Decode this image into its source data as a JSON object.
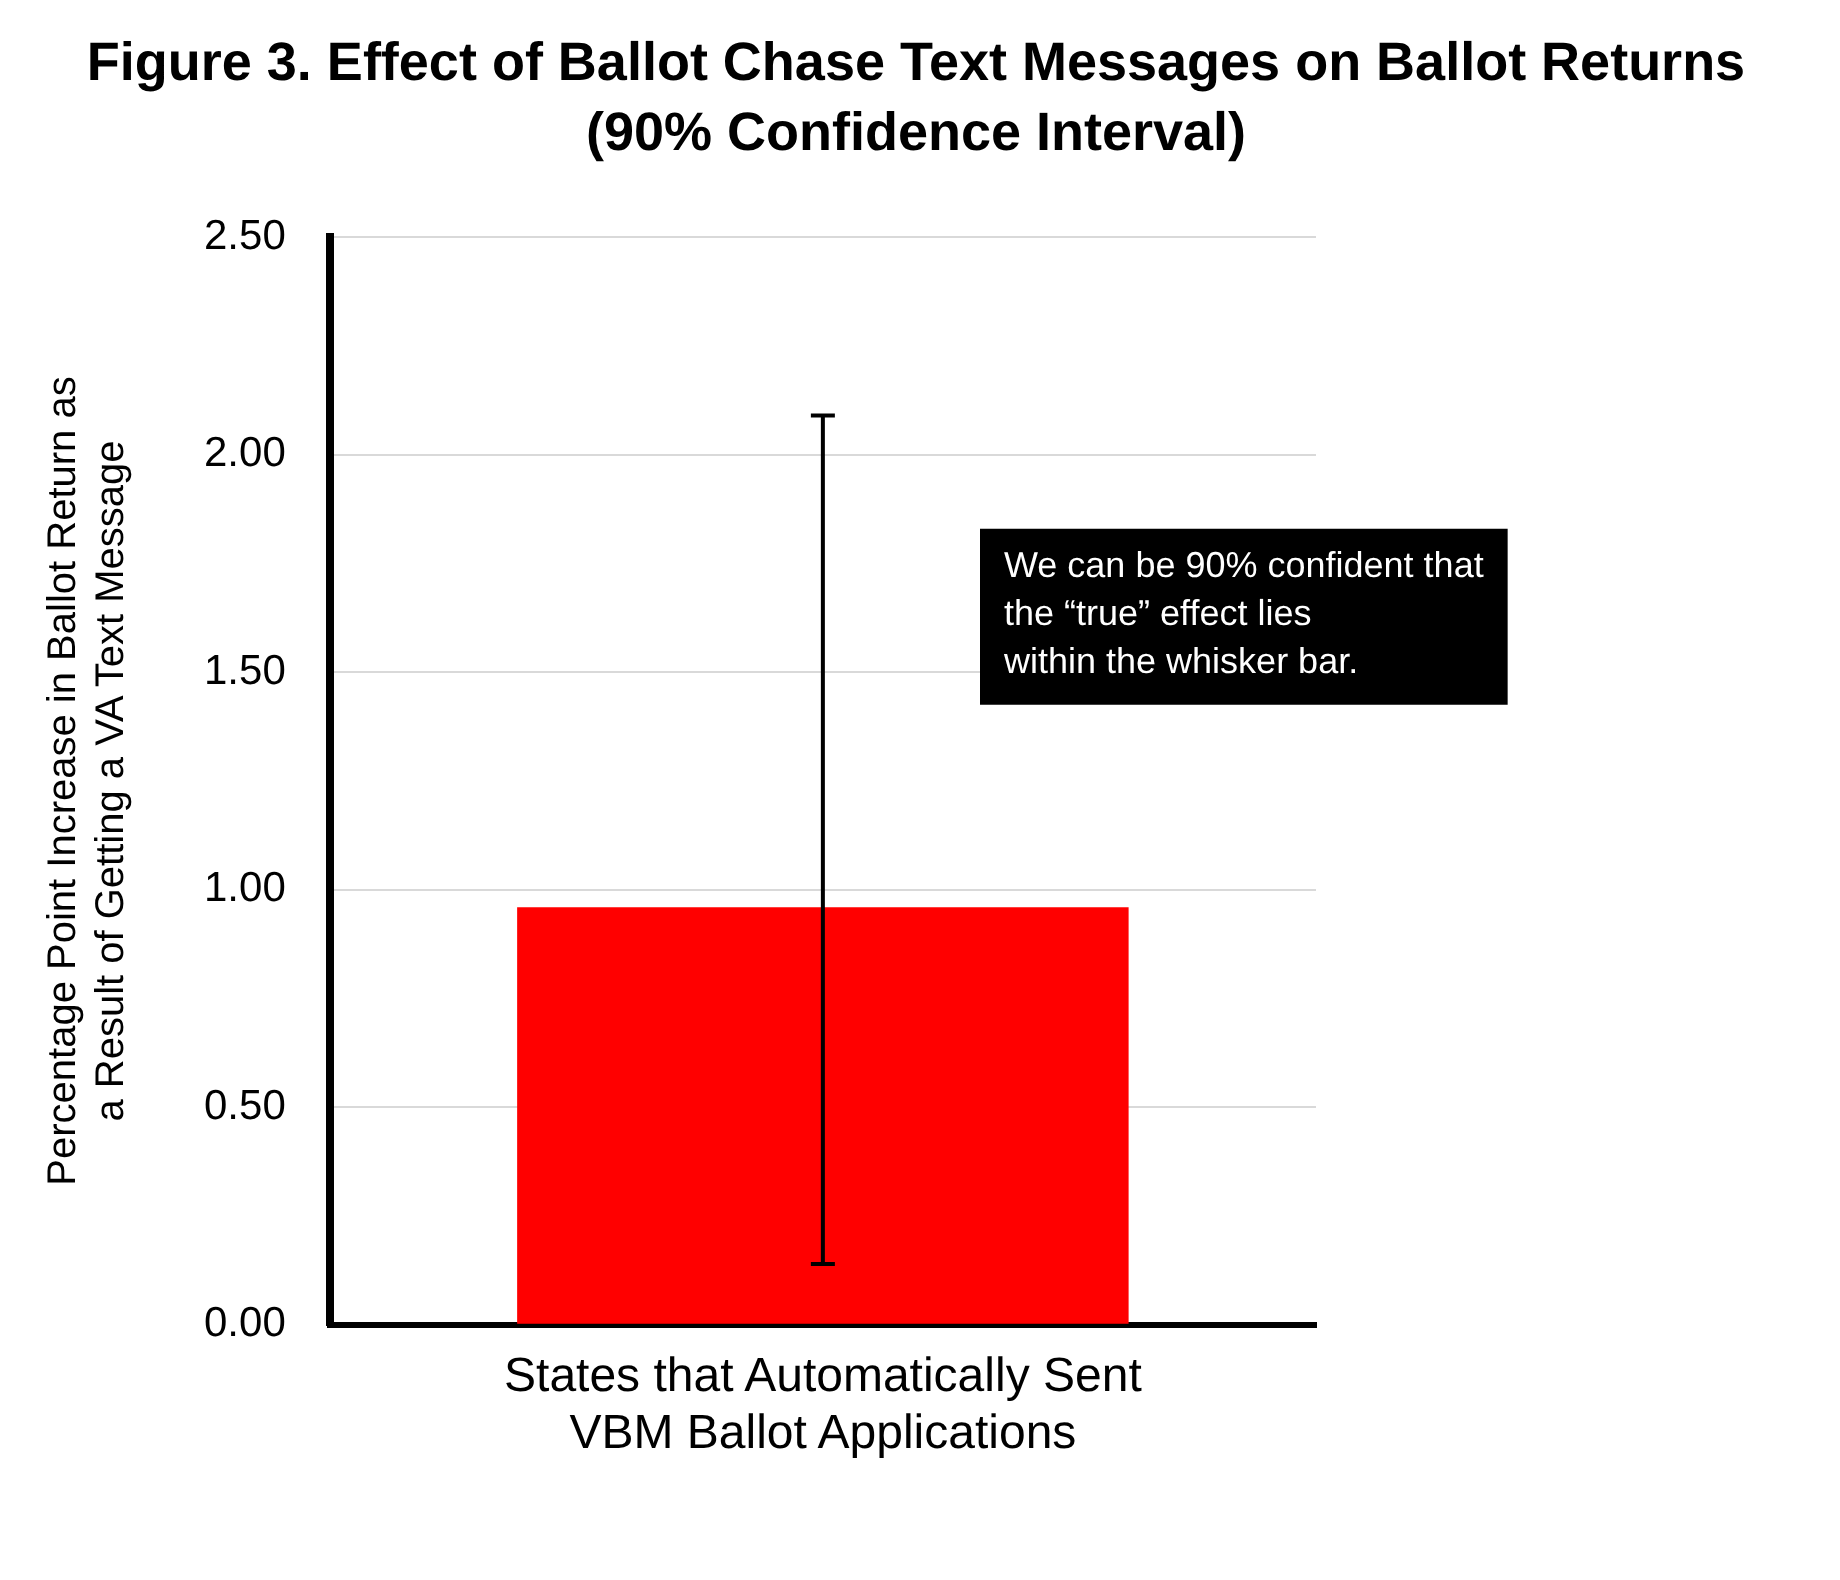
{
  "chart_data": {
    "type": "bar",
    "title": "Figure 3. Effect of Ballot Chase Text Messages on Ballot Returns (90% Confidence Interval)",
    "ylabel": "Percentage Point Increase in Ballot Return as a Result of Getting a VA Text Message",
    "categories": [
      "States that Automatically Sent VBM Ballot Applications"
    ],
    "values": [
      0.96
    ],
    "color": "#ff0000",
    "errors": [
      [
        0.14,
        2.09
      ]
    ],
    "ylim": [
      0,
      2.5
    ],
    "yticks": [
      {
        "value": 0,
        "label": "0.00"
      },
      {
        "value": 0.5,
        "label": "0.50"
      },
      {
        "value": 1,
        "label": "1.00"
      },
      {
        "value": 1.5,
        "label": "1.50"
      },
      {
        "value": 2,
        "label": "2.00"
      },
      {
        "value": 2.5,
        "label": "2.50"
      }
    ],
    "grid": "y",
    "legend": false,
    "annotations": [
      "We can be 90% confident that the “true” effect lies within the whisker bar."
    ]
  }
}
